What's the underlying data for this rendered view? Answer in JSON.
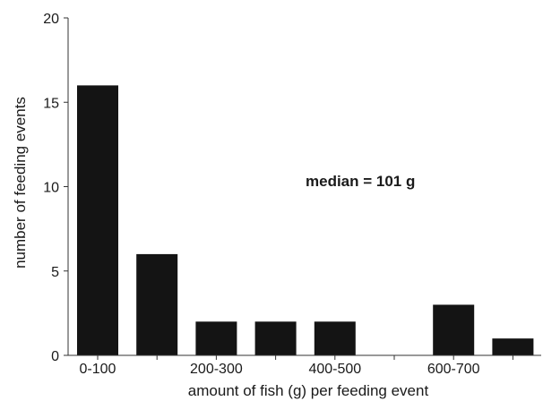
{
  "chart_data": {
    "type": "bar",
    "title": "",
    "xlabel": "amount of fish (g) per feeding event",
    "ylabel": "number of feeding events",
    "annotation": "median = 101 g",
    "ylim": [
      0,
      20
    ],
    "yticks": [
      0,
      5,
      10,
      15,
      20
    ],
    "xtick_labels": [
      "0-100",
      "200-300",
      "400-500",
      "600-700"
    ],
    "categories": [
      "0-100",
      "100-200",
      "200-300",
      "300-400",
      "400-500",
      "500-600",
      "600-700",
      "700-800"
    ],
    "values": [
      16,
      6,
      2,
      2,
      2,
      0,
      3,
      1
    ],
    "bar_color": "#141414",
    "grid": false,
    "legend": "none"
  }
}
